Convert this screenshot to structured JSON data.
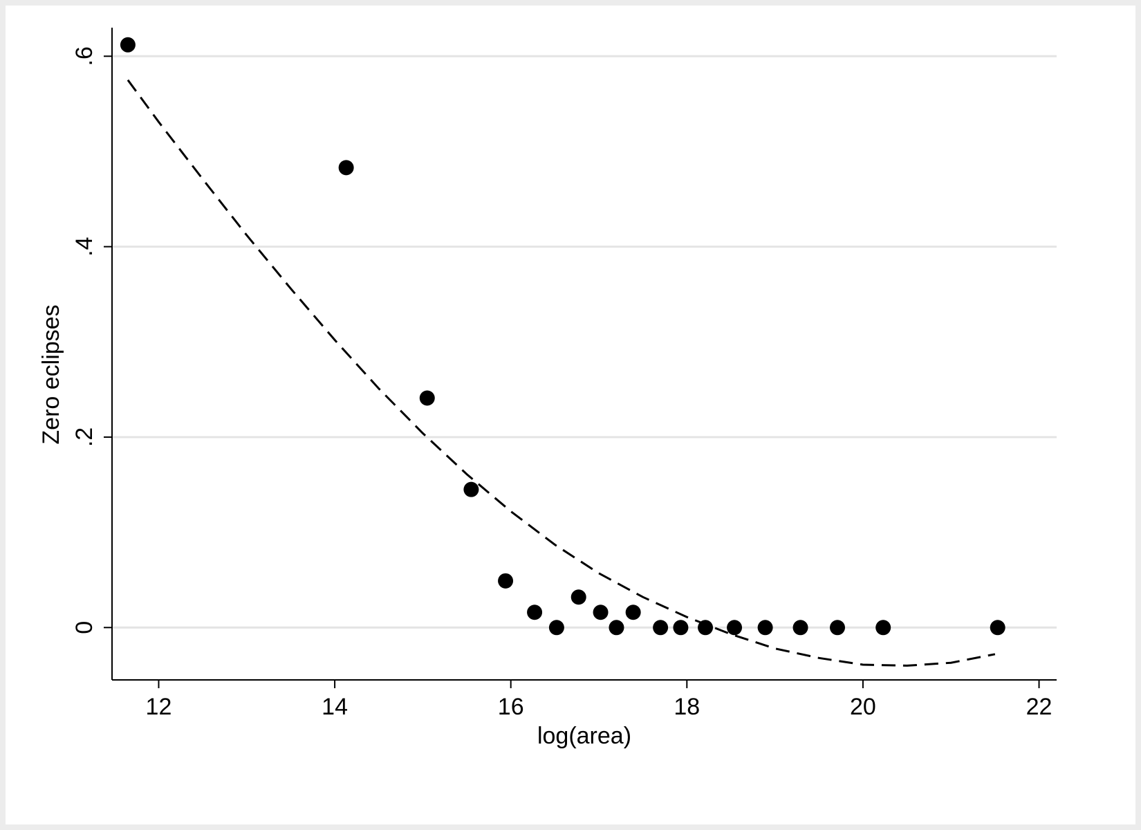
{
  "chart_data": {
    "type": "scatter",
    "xlabel": "log(area)",
    "ylabel": "Zero eclipses",
    "xlim": [
      11.47,
      22.2
    ],
    "ylim": [
      -0.055,
      0.63
    ],
    "x_ticks": [
      {
        "value": 12,
        "label": "12"
      },
      {
        "value": 14,
        "label": "14"
      },
      {
        "value": 16,
        "label": "16"
      },
      {
        "value": 18,
        "label": "18"
      },
      {
        "value": 20,
        "label": "20"
      },
      {
        "value": 22,
        "label": "22"
      }
    ],
    "y_ticks": [
      {
        "value": 0,
        "label": "0"
      },
      {
        "value": 0.2,
        "label": ".2"
      },
      {
        "value": 0.4,
        "label": ".4"
      },
      {
        "value": 0.6,
        "label": ".6"
      }
    ],
    "grid": "horizontal",
    "series": [
      {
        "kind": "points",
        "color": "#000000",
        "x": [
          11.65,
          14.13,
          15.05,
          15.55,
          15.94,
          16.27,
          16.52,
          16.77,
          17.02,
          17.2,
          17.39,
          17.7,
          17.93,
          18.21,
          18.54,
          18.89,
          19.29,
          19.71,
          20.23,
          21.53
        ],
        "y": [
          0.612,
          0.483,
          0.241,
          0.145,
          0.049,
          0.016,
          0.0,
          0.032,
          0.016,
          0.0,
          0.016,
          0.0,
          0.0,
          0.0,
          0.0,
          0.0,
          0.0,
          0.0,
          0.0,
          0.0
        ]
      },
      {
        "kind": "fitted-curve",
        "style": "dashed",
        "color": "#000000",
        "x": [
          11.65,
          12.0,
          12.5,
          13.0,
          13.5,
          14.0,
          14.5,
          15.0,
          15.5,
          16.0,
          16.5,
          17.0,
          17.5,
          18.0,
          18.5,
          19.0,
          19.5,
          20.0,
          20.5,
          21.0,
          21.5
        ],
        "y": [
          0.575,
          0.531,
          0.471,
          0.412,
          0.356,
          0.302,
          0.251,
          0.204,
          0.161,
          0.122,
          0.087,
          0.057,
          0.032,
          0.011,
          -0.007,
          -0.022,
          -0.032,
          -0.039,
          -0.04,
          -0.037,
          -0.028
        ]
      }
    ]
  }
}
